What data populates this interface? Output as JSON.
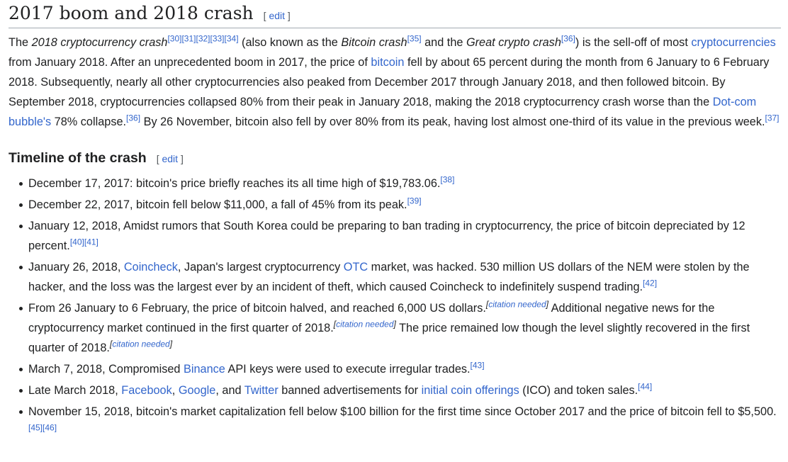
{
  "section": {
    "title": "2017 boom and 2018 crash",
    "edit_open": "[",
    "edit_label": "edit",
    "edit_close": "]"
  },
  "paragraph": {
    "t1": "The ",
    "t2": "2018 cryptocurrency crash",
    "c1": "[30]",
    "c2": "[31]",
    "c3": "[32]",
    "c4": "[33]",
    "c5": "[34]",
    "t3": " (also known as the ",
    "t4": "Bitcoin crash",
    "c6": "[35]",
    "t5": " and the ",
    "t6": "Great crypto crash",
    "c7": "[36]",
    "t7": ") is the sell-off of most ",
    "l1": "cryptocurrencies",
    "t8": " from January 2018. After an unprecedented boom in 2017, the price of ",
    "l2": "bitcoin",
    "t9": " fell by about 65 percent during the month from 6 January to 6 February 2018. Subsequently, nearly all other cryptocurrencies also peaked from December 2017 through January 2018, and then followed bitcoin. By September 2018, cryptocurrencies collapsed 80% from their peak in January 2018, making the 2018 cryptocurrency crash worse than the ",
    "l3": "Dot-com bubble's",
    "t10": " 78% collapse.",
    "c8": "[36]",
    "t11": " By 26 November, bitcoin also fell by over 80% from its peak, having lost almost one-third of its value in the previous week.",
    "c9": "[37]"
  },
  "timeline": {
    "title": "Timeline of the crash",
    "edit_open": "[",
    "edit_label": "edit",
    "edit_close": "]",
    "items": [
      {
        "t1": "December 17, 2017: bitcoin's price briefly reaches its all time high of $19,783.06.",
        "c1": "[38]"
      },
      {
        "t1": "December 22, 2017, bitcoin fell below $11,000, a fall of 45% from its peak.",
        "c1": "[39]"
      },
      {
        "t1": "January 12, 2018, Amidst rumors that South Korea could be preparing to ban trading in cryptocurrency, the price of bitcoin depreciated by 12 percent.",
        "c1": "[40]",
        "c2": "[41]"
      },
      {
        "t1": "January 26, 2018, ",
        "l1": "Coincheck",
        "t2": ", Japan's largest cryptocurrency ",
        "l2": "OTC",
        "t3": " market, was hacked. 530 million US dollars of the NEM were stolen by the hacker, and the loss was the largest ever by an incident of theft, which caused Coincheck to indefinitely suspend trading.",
        "c1": "[42]"
      },
      {
        "t1": "From 26 January to 6 February, the price of bitcoin halved, and reached 6,000 US dollars.",
        "cn1": "citation needed",
        "t2": " Additional negative news for the cryptocurrency market continued in the first quarter of 2018.",
        "cn2": "citation needed",
        "t3": " The price remained low though the level slightly recovered in the first quarter of 2018.",
        "cn3": "citation needed"
      },
      {
        "t1": "March 7, 2018, Compromised ",
        "l1": "Binance",
        "t2": " API keys were used to execute irregular trades.",
        "c1": "[43]"
      },
      {
        "t1": "Late March 2018, ",
        "l1": "Facebook",
        "t2": ", ",
        "l2": "Google",
        "t3": ", and ",
        "l3": "Twitter",
        "t4": " banned advertisements for ",
        "l4": "initial coin offerings",
        "t5": " (ICO) and token sales.",
        "c1": "[44]"
      },
      {
        "t1": "November 15, 2018, bitcoin's market capitalization fell below $100 billion for the first time since October 2017 and the price of bitcoin fell to $5,500.",
        "c1": "[45]",
        "c2": "[46]"
      }
    ]
  }
}
